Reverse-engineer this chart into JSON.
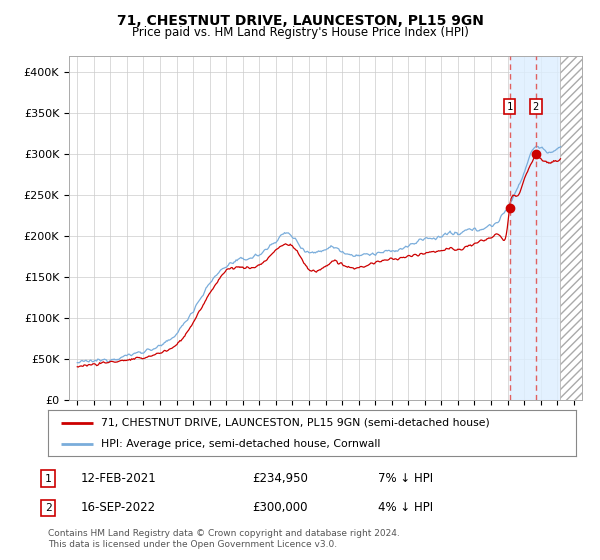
{
  "title": "71, CHESTNUT DRIVE, LAUNCESTON, PL15 9GN",
  "subtitle": "Price paid vs. HM Land Registry's House Price Index (HPI)",
  "footer": "Contains HM Land Registry data © Crown copyright and database right 2024.\nThis data is licensed under the Open Government Licence v3.0.",
  "legend_line1": "71, CHESTNUT DRIVE, LAUNCESTON, PL15 9GN (semi-detached house)",
  "legend_line2": "HPI: Average price, semi-detached house, Cornwall",
  "sale1_label": "1",
  "sale1_date": "12-FEB-2021",
  "sale1_price": "£234,950",
  "sale1_hpi": "7% ↓ HPI",
  "sale1_year": 2021.12,
  "sale1_value": 234950,
  "sale2_label": "2",
  "sale2_date": "16-SEP-2022",
  "sale2_price": "£300,000",
  "sale2_hpi": "4% ↓ HPI",
  "sale2_year": 2022.71,
  "sale2_value": 300000,
  "hpi_color": "#7aaddb",
  "price_color": "#cc0000",
  "marker_color": "#cc0000",
  "shade_color": "#ddeeff",
  "dashed_color": "#e06060",
  "grid_color": "#cccccc",
  "background_color": "#ffffff",
  "hatch_color": "#aaaaaa",
  "ylim": [
    0,
    420000
  ],
  "xlim_start": 1994.5,
  "xlim_end": 2025.5,
  "shade_start": 2021.12,
  "shade_end": 2024.17,
  "hatch_start": 2024.17,
  "hatch_end": 2025.5
}
